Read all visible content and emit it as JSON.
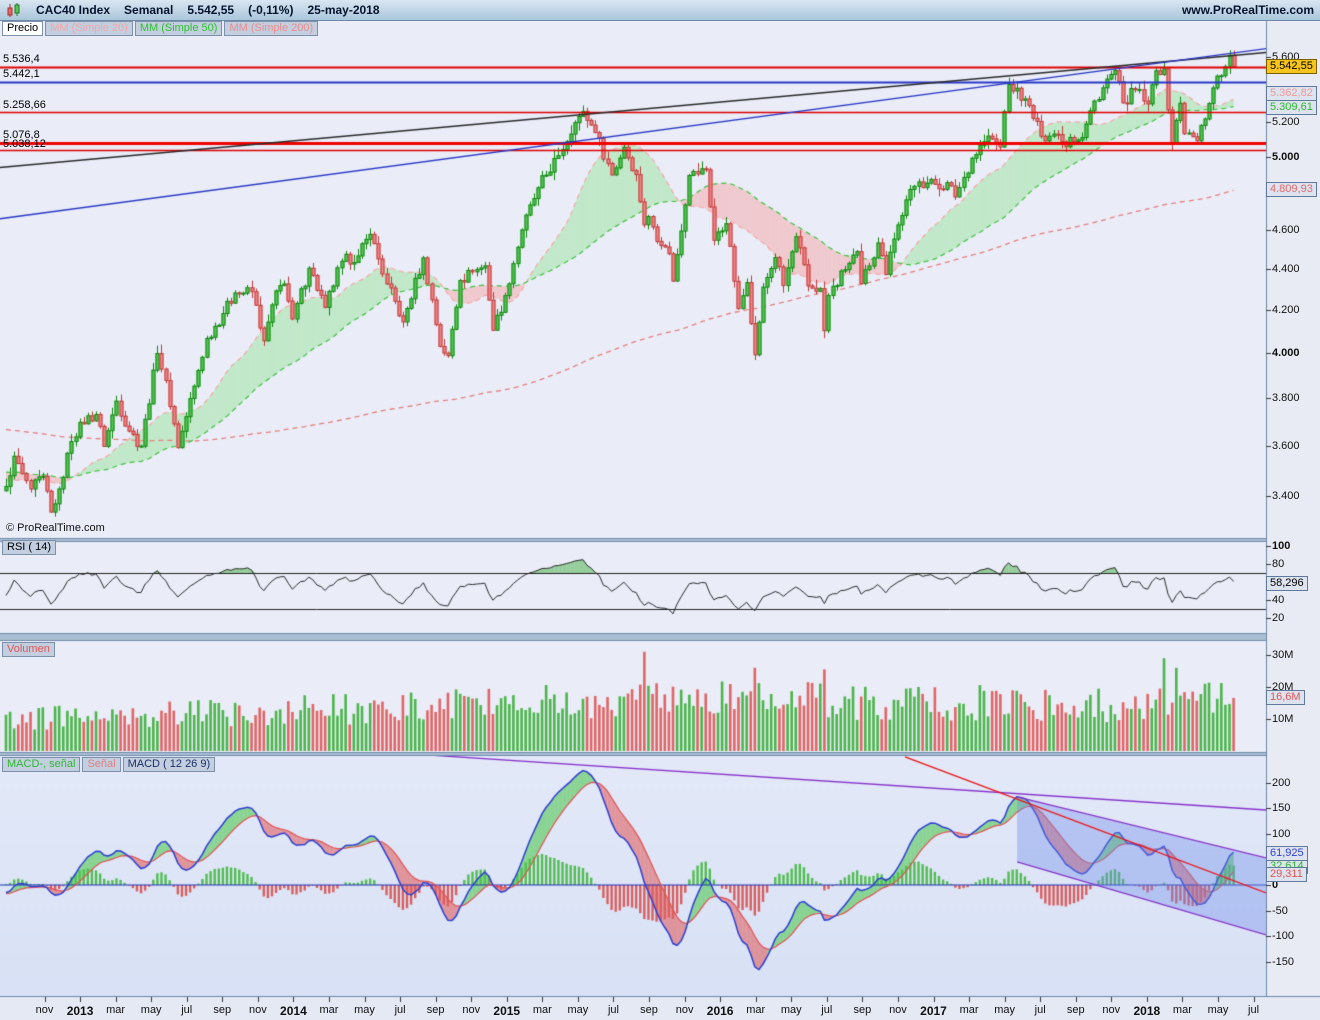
{
  "header": {
    "title": "CAC40 Index",
    "timeframe": "Semanal",
    "last_price": "5.542,55",
    "change": "(-0,11%)",
    "date": "25-may-2018",
    "site": "www.ProRealTime.com"
  },
  "price_panel": {
    "legend": [
      {
        "label": "Precio",
        "color": "#000000",
        "bg": "#ffffff"
      },
      {
        "label": "MM (Simple 20)",
        "color": "#f2a6a6",
        "bg": "#c3cfe0"
      },
      {
        "label": "MM (Simple 50)",
        "color": "#2ec22e",
        "bg": "#c3cfe0"
      },
      {
        "label": "MM (Simple 200)",
        "color": "#ea8c8c",
        "bg": "#c3cfe0"
      }
    ],
    "copyright": "© ProRealTime.com",
    "hline_labels": [
      {
        "label": "5.536,4",
        "price": 5536.4,
        "color": "#e00000",
        "width": 2
      },
      {
        "label": "5.442,1",
        "price": 5442.1,
        "color": "#2837c8",
        "width": 2
      },
      {
        "label": "5.258,66",
        "price": 5258.66,
        "color": "#e00000",
        "width": 1.5
      },
      {
        "label": "5.076,8",
        "price": 5076.8,
        "color": "#f00000",
        "width": 3
      },
      {
        "label": "5.038,12",
        "price": 5038.12,
        "color": "#e00000",
        "width": 1.5
      }
    ],
    "axis_ticks": [
      {
        "label": "5.600",
        "v": 5600,
        "bold": false
      },
      {
        "label": "5.200",
        "v": 5200,
        "bold": false
      },
      {
        "label": "5.000",
        "v": 5000,
        "bold": true
      },
      {
        "label": "4.600",
        "v": 4600,
        "bold": false
      },
      {
        "label": "4.400",
        "v": 4400,
        "bold": false
      },
      {
        "label": "4.200",
        "v": 4200,
        "bold": false
      },
      {
        "label": "4.000",
        "v": 4000,
        "bold": true
      },
      {
        "label": "3.800",
        "v": 3800,
        "bold": false
      },
      {
        "label": "3.600",
        "v": 3600,
        "bold": false
      },
      {
        "label": "3.400",
        "v": 3400,
        "bold": false
      }
    ],
    "price_box": {
      "label": "5.542,55",
      "value": 5542.55
    },
    "ma_boxes": [
      {
        "label": "5.362,82",
        "value": 5362.82,
        "color": "#f09999"
      },
      {
        "label": "5.309,61",
        "value": 5309.61,
        "color": "#2eb82e"
      },
      {
        "label": "4.809,93",
        "value": 4809.93,
        "color": "#e06b6b"
      }
    ]
  },
  "rsi_panel": {
    "label": "RSI ( 14)",
    "axis_ticks": [
      {
        "label": "100",
        "v": 100,
        "bold": true
      },
      {
        "label": "80",
        "v": 80,
        "bold": false
      },
      {
        "label": "40",
        "v": 40,
        "bold": false
      },
      {
        "label": "20",
        "v": 20,
        "bold": false
      }
    ],
    "value_box": {
      "label": "58,296",
      "value": 58.296
    },
    "hlines": [
      70,
      30
    ]
  },
  "volume_panel": {
    "label": "Volumen",
    "axis_ticks": [
      {
        "label": "30M",
        "v": 30,
        "bold": false
      },
      {
        "label": "20M",
        "v": 20,
        "bold": false
      },
      {
        "label": "10M",
        "v": 10,
        "bold": false
      }
    ],
    "value_box": {
      "label": "16,6M",
      "value": 16.6,
      "color": "#e05555"
    }
  },
  "macd_panel": {
    "legend": [
      {
        "label": "MACD-, señal",
        "color": "#2eb82e"
      },
      {
        "label": "Señal",
        "color": "#e08080"
      },
      {
        "label": "MACD ( 12 26 9)",
        "color": "#1a2f66"
      }
    ],
    "axis_ticks": [
      {
        "label": "200",
        "v": 200,
        "bold": false
      },
      {
        "label": "150",
        "v": 150,
        "bold": false
      },
      {
        "label": "100",
        "v": 100,
        "bold": false
      },
      {
        "label": "0",
        "v": 0,
        "bold": true
      },
      {
        "label": "-50",
        "v": -50,
        "bold": false
      },
      {
        "label": "-100",
        "v": -100,
        "bold": false
      },
      {
        "label": "-150",
        "v": -150,
        "bold": false
      }
    ],
    "value_boxes": [
      {
        "label": "61,925",
        "value": 61.925,
        "color": "#2f3fd3"
      },
      {
        "label": "32,614",
        "value": 32.614,
        "color": "#2eb82e"
      },
      {
        "label": "29,311",
        "value": 29.311,
        "color": "#e05555"
      }
    ]
  },
  "x_axis": {
    "labels": [
      "nov",
      "2013",
      "mar",
      "may",
      "jul",
      "sep",
      "nov",
      "2014",
      "mar",
      "may",
      "jul",
      "sep",
      "nov",
      "2015",
      "mar",
      "may",
      "jul",
      "sep",
      "nov",
      "2016",
      "mar",
      "may",
      "jul",
      "sep",
      "nov",
      "2017",
      "mar",
      "may",
      "jul",
      "sep",
      "nov",
      "2018",
      "mar",
      "may",
      "jul"
    ],
    "year_labels": [
      "2013",
      "2014",
      "2015",
      "2016",
      "2017",
      "2018"
    ]
  },
  "chart_data": {
    "type": "candlestick",
    "instrument": "CAC40 Index",
    "timeframe": "weekly",
    "scale": "log",
    "x_range_weeks": 307,
    "price_axis_range": [
      3300,
      5750
    ],
    "indicators": [
      "SMA20",
      "SMA50",
      "SMA200",
      "RSI(14)",
      "Volume",
      "MACD(12,26,9)"
    ],
    "price_anchors": [
      [
        0,
        3440
      ],
      [
        2,
        3560
      ],
      [
        4,
        3490
      ],
      [
        6,
        3430
      ],
      [
        9,
        3480
      ],
      [
        11,
        3341
      ],
      [
        13,
        3430
      ],
      [
        16,
        3620
      ],
      [
        18,
        3700
      ],
      [
        22,
        3733
      ],
      [
        24,
        3600
      ],
      [
        27,
        3790
      ],
      [
        30,
        3663
      ],
      [
        33,
        3601
      ],
      [
        37,
        4001
      ],
      [
        39,
        3880
      ],
      [
        42,
        3595
      ],
      [
        46,
        3855
      ],
      [
        49,
        4070
      ],
      [
        53,
        4187
      ],
      [
        56,
        4286
      ],
      [
        60,
        4292
      ],
      [
        63,
        4059
      ],
      [
        66,
        4296
      ],
      [
        68,
        4330
      ],
      [
        70,
        4161
      ],
      [
        74,
        4408
      ],
      [
        78,
        4216
      ],
      [
        82,
        4443
      ],
      [
        86,
        4470
      ],
      [
        89,
        4581
      ],
      [
        93,
        4330
      ],
      [
        97,
        4147
      ],
      [
        102,
        4460
      ],
      [
        106,
        4033
      ],
      [
        108,
        3991
      ],
      [
        111,
        4347
      ],
      [
        114,
        4390
      ],
      [
        117,
        4420
      ],
      [
        119,
        4108
      ],
      [
        122,
        4273
      ],
      [
        126,
        4604
      ],
      [
        130,
        4830
      ],
      [
        135,
        5010
      ],
      [
        139,
        5201
      ],
      [
        141,
        5268
      ],
      [
        144,
        5143
      ],
      [
        148,
        4901
      ],
      [
        151,
        5057
      ],
      [
        154,
        4903
      ],
      [
        156,
        4631
      ],
      [
        157,
        4675
      ],
      [
        160,
        4523
      ],
      [
        162,
        4481
      ],
      [
        163,
        4344
      ],
      [
        167,
        4898
      ],
      [
        171,
        4930
      ],
      [
        173,
        4550
      ],
      [
        176,
        4637
      ],
      [
        179,
        4210
      ],
      [
        181,
        4337
      ],
      [
        183,
        3995
      ],
      [
        185,
        4314
      ],
      [
        188,
        4462
      ],
      [
        190,
        4322
      ],
      [
        193,
        4569
      ],
      [
        196,
        4320
      ],
      [
        199,
        4307
      ],
      [
        200,
        4106
      ],
      [
        201,
        4274
      ],
      [
        205,
        4401
      ],
      [
        208,
        4492
      ],
      [
        209,
        4332
      ],
      [
        213,
        4536
      ],
      [
        215,
        4377
      ],
      [
        216,
        4489
      ],
      [
        220,
        4764
      ],
      [
        223,
        4862
      ],
      [
        227,
        4849
      ],
      [
        231,
        4840
      ],
      [
        232,
        4780
      ],
      [
        236,
        4995
      ],
      [
        240,
        5122
      ],
      [
        243,
        5059
      ],
      [
        244,
        5267
      ],
      [
        245,
        5432
      ],
      [
        249,
        5343
      ],
      [
        253,
        5121
      ],
      [
        257,
        5131
      ],
      [
        259,
        5060
      ],
      [
        260,
        5114
      ],
      [
        263,
        5114
      ],
      [
        266,
        5330
      ],
      [
        270,
        5494
      ],
      [
        271,
        5518
      ],
      [
        273,
        5319
      ],
      [
        276,
        5399
      ],
      [
        279,
        5313
      ],
      [
        281,
        5517
      ],
      [
        283,
        5529
      ],
      [
        285,
        5079
      ],
      [
        287,
        5317
      ],
      [
        288,
        5136
      ],
      [
        291,
        5095
      ],
      [
        294,
        5315
      ],
      [
        296,
        5483
      ],
      [
        298,
        5542
      ],
      [
        299,
        5615
      ],
      [
        300,
        5542.55
      ]
    ],
    "prehistory": {
      "weeks": 200,
      "from": 3900,
      "to": 3440
    },
    "volume_anchors_millions": [
      [
        0,
        10.5
      ],
      [
        30,
        11
      ],
      [
        60,
        12.5
      ],
      [
        90,
        13.5
      ],
      [
        120,
        15
      ],
      [
        150,
        16
      ],
      [
        180,
        17
      ],
      [
        210,
        15
      ],
      [
        240,
        15.5
      ],
      [
        270,
        14.5
      ],
      [
        300,
        16.6
      ]
    ],
    "volume_spikes_millions": {
      "156": 31,
      "183": 26,
      "200": 25.5,
      "223": 20,
      "283": 29,
      "286": 26,
      "300": 16.6
    },
    "price_trendlines": [
      {
        "name": "long-term-black",
        "color": "#2a2a2a",
        "w1": -1.5,
        "p1": 4940,
        "w2": 308,
        "p2": 5630
      },
      {
        "name": "rising-blue",
        "color": "#2837c8",
        "w1": -1.5,
        "p1": 4660,
        "w2": 308,
        "p2": 5655
      }
    ],
    "macd_annotations": {
      "trendlines": [
        {
          "name": "purple-fan-1",
          "color": "#8833cc",
          "w1": 101,
          "v1": 256,
          "w2": 308,
          "v2": 147
        },
        {
          "name": "purple-fan-2",
          "color": "#8833cc",
          "w1": 247.1,
          "v1": 172.5,
          "w2": 308,
          "v2": 52.9
        },
        {
          "name": "purple-fan-3",
          "color": "#8833cc",
          "w1": 247.1,
          "v1": 45.1,
          "w2": 308,
          "v2": -98
        },
        {
          "name": "red-decline",
          "color": "#ee1111",
          "w1": 219.7,
          "v1": 251,
          "w2": 308,
          "v2": -15.7
        }
      ],
      "blue_channel_fill": [
        [
          247.1,
          172.5
        ],
        [
          308,
          52.9
        ],
        [
          308,
          -98
        ],
        [
          247.1,
          45.1
        ]
      ]
    },
    "colors": {
      "candle_up_fill": "#58c558",
      "candle_up_stroke": "#0f8a0f",
      "candle_down_fill": "#ef8686",
      "candle_down_stroke": "#c23b3b",
      "sma20": "#f7a8a8",
      "sma50": "#3ec43e",
      "sma200": "#e87f7f",
      "cloud_up": "rgba(144,226,144,0.45)",
      "cloud_down": "rgba(246,166,166,0.5)",
      "rsi_line": "#2b2b2b",
      "rsi_over_fill": "rgba(80,180,80,0.55)",
      "vol_up": "#4db54d",
      "vol_down": "#e06666",
      "macd_line": "#2f3fd3",
      "signal_line": "#e05555",
      "hist_up": "#52bd52",
      "hist_down": "#d95f5f",
      "macd_fill_up": "rgba(80,200,80,0.6)",
      "macd_fill_down": "rgba(225,95,95,0.6)",
      "zero_line": "#2233bb",
      "blue_channel": "rgba(110,140,235,0.38)",
      "price_box_bg": "#f5c41d"
    }
  }
}
